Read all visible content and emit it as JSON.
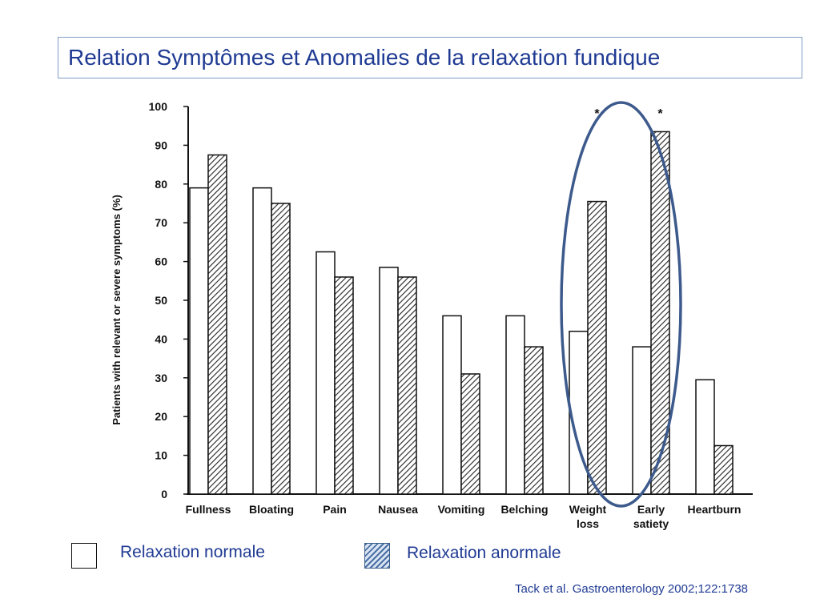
{
  "slide": {
    "title": "Relation Symptômes et Anomalies de la relaxation fundique",
    "citation": "Tack et al. Gastroenterology 2002;122:1738"
  },
  "legend": {
    "normal_label": "Relaxation normale",
    "abnormal_label": "Relaxation anormale"
  },
  "chart_data": {
    "type": "bar",
    "ylabel": "Patients with relevant or severe symptoms (%)",
    "xlabel": "",
    "ylim": [
      0,
      100
    ],
    "yticks": [
      0,
      10,
      20,
      30,
      40,
      50,
      60,
      70,
      80,
      90,
      100
    ],
    "categories": [
      [
        "Fullness"
      ],
      [
        "Bloating"
      ],
      [
        "Pain"
      ],
      [
        "Nausea"
      ],
      [
        "Vomiting"
      ],
      [
        "Belching"
      ],
      [
        "Weight",
        "loss"
      ],
      [
        "Early",
        "satiety"
      ],
      [
        "Heartburn"
      ]
    ],
    "series": [
      {
        "name": "Relaxation normale",
        "fill": "white",
        "values": [
          79,
          79,
          62.5,
          58.5,
          46,
          46,
          42,
          38,
          29.5
        ]
      },
      {
        "name": "Relaxation anormale",
        "fill": "hatched",
        "values": [
          87.5,
          75,
          56,
          56,
          31,
          38,
          75.5,
          93.5,
          12.5
        ]
      }
    ],
    "significance_marker": "*",
    "significant_categories": [
      6,
      7
    ],
    "highlight": {
      "type": "ellipse",
      "around_categories": [
        6,
        7
      ],
      "color": "#3d5a8c"
    },
    "grid": false,
    "legend_position": "bottom"
  }
}
